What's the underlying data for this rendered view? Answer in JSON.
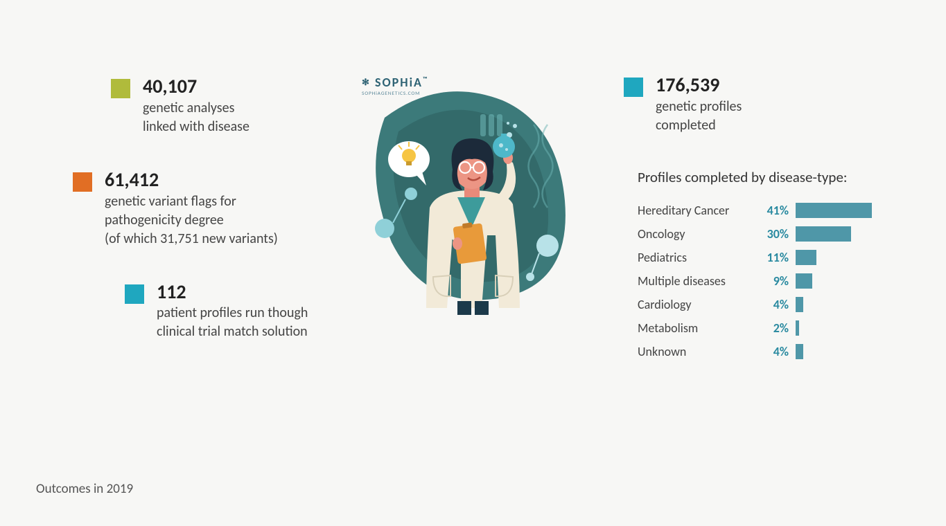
{
  "colors": {
    "olive": "#b0bb3b",
    "orange": "#e16e24",
    "teal": "#1fa7bf",
    "bar": "#4f97a8",
    "pct": "#2a8aa0",
    "blob": "#3c7a7a",
    "blobDark": "#2d5f5f"
  },
  "brand": {
    "name": "SOPHiA",
    "sub": "SOPHiAGENETICS.COM"
  },
  "leftStats": [
    {
      "color": "olive",
      "indent": "indent1",
      "number": "40,107",
      "desc": "genetic analyses\nlinked with disease"
    },
    {
      "color": "orange",
      "indent": "indent-neg",
      "number": "61,412",
      "desc": "genetic variant flags for\npathogenicity degree\n(of which 31,751 new variants)"
    },
    {
      "color": "teal",
      "indent": "indent2",
      "number": "112",
      "desc": "patient profiles run though\nclinical trial match solution"
    }
  ],
  "rightStat": {
    "color": "teal",
    "number": "176,539",
    "desc": "genetic profiles\ncompleted"
  },
  "chart": {
    "title": "Profiles completed by disease-type:",
    "maxBarPx": 110,
    "rows": [
      {
        "label": "Hereditary Cancer",
        "pct": 41
      },
      {
        "label": "Oncology",
        "pct": 30
      },
      {
        "label": "Pediatrics",
        "pct": 11
      },
      {
        "label": "Multiple diseases",
        "pct": 9
      },
      {
        "label": "Cardiology",
        "pct": 4
      },
      {
        "label": "Metabolism",
        "pct": 2
      },
      {
        "label": "Unknown",
        "pct": 4
      }
    ]
  },
  "footer": "Outcomes in 2019"
}
